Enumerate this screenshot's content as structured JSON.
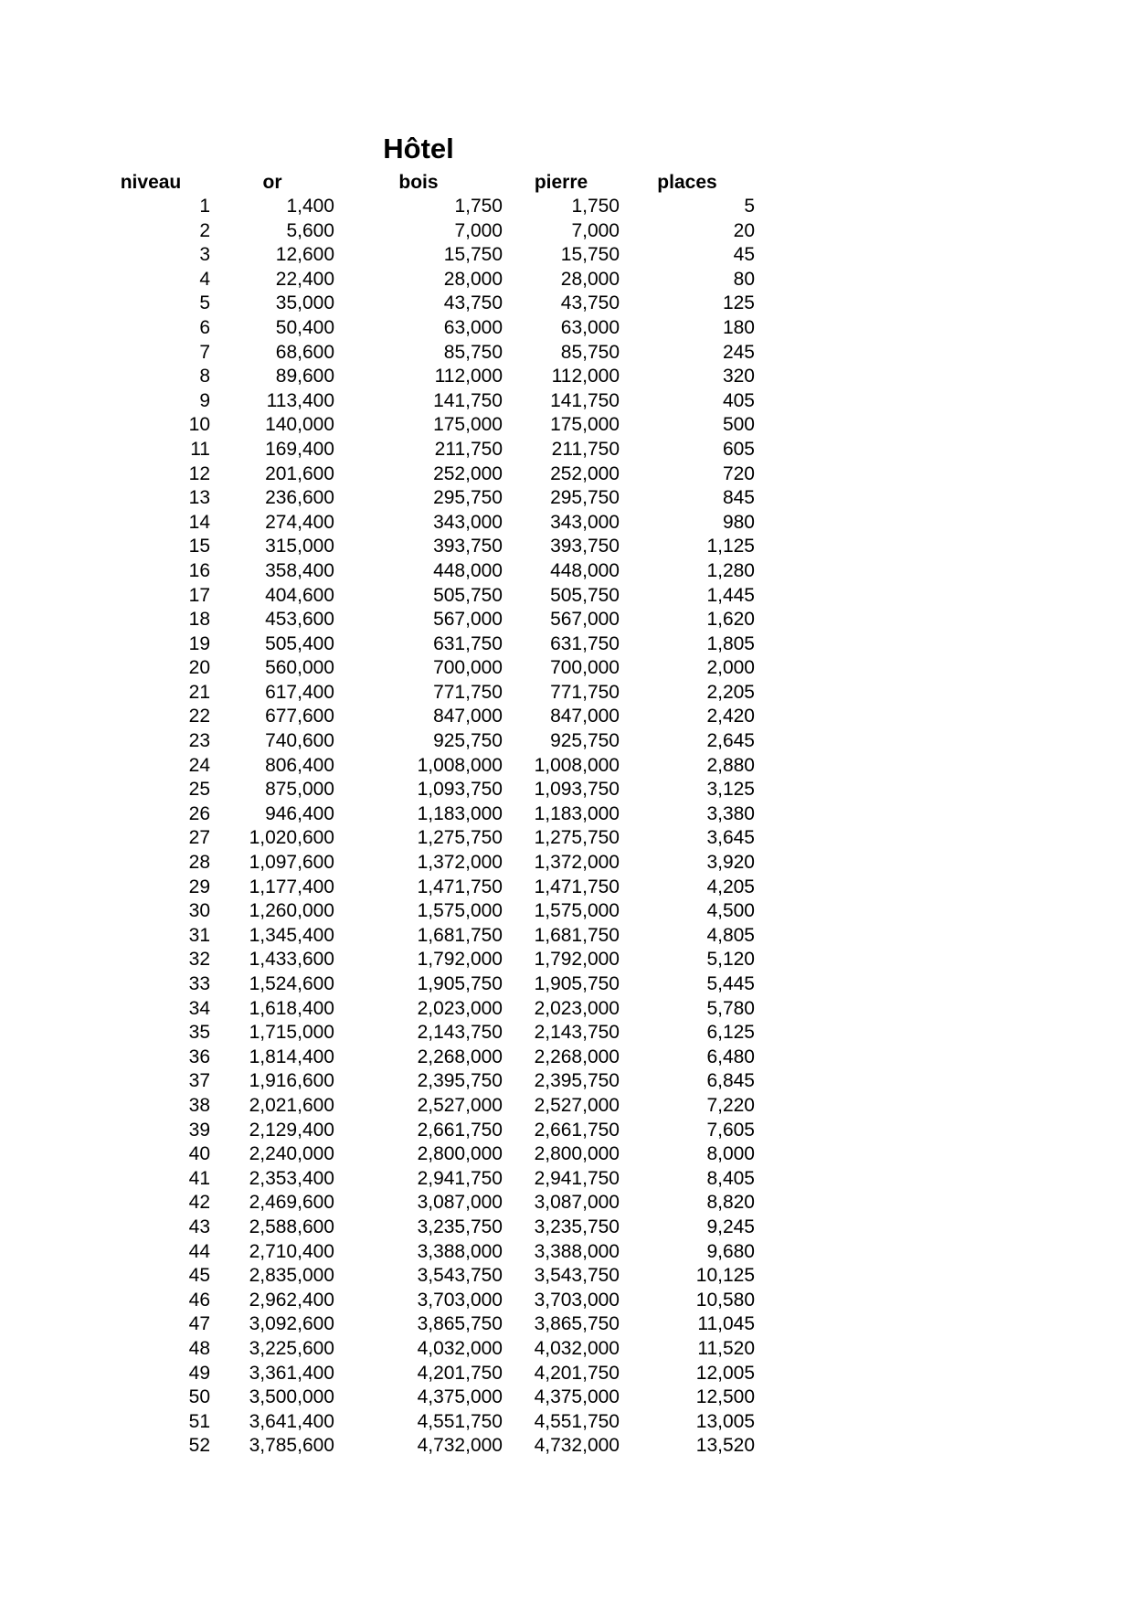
{
  "title": "Hôtel",
  "table": {
    "columns": [
      {
        "key": "niveau",
        "label": "niveau"
      },
      {
        "key": "or",
        "label": "or"
      },
      {
        "key": "bois",
        "label": "bois"
      },
      {
        "key": "pierre",
        "label": "pierre"
      },
      {
        "key": "places",
        "label": "places"
      }
    ],
    "rows": [
      [
        "1",
        "1,400",
        "1,750",
        "1,750",
        "5"
      ],
      [
        "2",
        "5,600",
        "7,000",
        "7,000",
        "20"
      ],
      [
        "3",
        "12,600",
        "15,750",
        "15,750",
        "45"
      ],
      [
        "4",
        "22,400",
        "28,000",
        "28,000",
        "80"
      ],
      [
        "5",
        "35,000",
        "43,750",
        "43,750",
        "125"
      ],
      [
        "6",
        "50,400",
        "63,000",
        "63,000",
        "180"
      ],
      [
        "7",
        "68,600",
        "85,750",
        "85,750",
        "245"
      ],
      [
        "8",
        "89,600",
        "112,000",
        "112,000",
        "320"
      ],
      [
        "9",
        "113,400",
        "141,750",
        "141,750",
        "405"
      ],
      [
        "10",
        "140,000",
        "175,000",
        "175,000",
        "500"
      ],
      [
        "11",
        "169,400",
        "211,750",
        "211,750",
        "605"
      ],
      [
        "12",
        "201,600",
        "252,000",
        "252,000",
        "720"
      ],
      [
        "13",
        "236,600",
        "295,750",
        "295,750",
        "845"
      ],
      [
        "14",
        "274,400",
        "343,000",
        "343,000",
        "980"
      ],
      [
        "15",
        "315,000",
        "393,750",
        "393,750",
        "1,125"
      ],
      [
        "16",
        "358,400",
        "448,000",
        "448,000",
        "1,280"
      ],
      [
        "17",
        "404,600",
        "505,750",
        "505,750",
        "1,445"
      ],
      [
        "18",
        "453,600",
        "567,000",
        "567,000",
        "1,620"
      ],
      [
        "19",
        "505,400",
        "631,750",
        "631,750",
        "1,805"
      ],
      [
        "20",
        "560,000",
        "700,000",
        "700,000",
        "2,000"
      ],
      [
        "21",
        "617,400",
        "771,750",
        "771,750",
        "2,205"
      ],
      [
        "22",
        "677,600",
        "847,000",
        "847,000",
        "2,420"
      ],
      [
        "23",
        "740,600",
        "925,750",
        "925,750",
        "2,645"
      ],
      [
        "24",
        "806,400",
        "1,008,000",
        "1,008,000",
        "2,880"
      ],
      [
        "25",
        "875,000",
        "1,093,750",
        "1,093,750",
        "3,125"
      ],
      [
        "26",
        "946,400",
        "1,183,000",
        "1,183,000",
        "3,380"
      ],
      [
        "27",
        "1,020,600",
        "1,275,750",
        "1,275,750",
        "3,645"
      ],
      [
        "28",
        "1,097,600",
        "1,372,000",
        "1,372,000",
        "3,920"
      ],
      [
        "29",
        "1,177,400",
        "1,471,750",
        "1,471,750",
        "4,205"
      ],
      [
        "30",
        "1,260,000",
        "1,575,000",
        "1,575,000",
        "4,500"
      ],
      [
        "31",
        "1,345,400",
        "1,681,750",
        "1,681,750",
        "4,805"
      ],
      [
        "32",
        "1,433,600",
        "1,792,000",
        "1,792,000",
        "5,120"
      ],
      [
        "33",
        "1,524,600",
        "1,905,750",
        "1,905,750",
        "5,445"
      ],
      [
        "34",
        "1,618,400",
        "2,023,000",
        "2,023,000",
        "5,780"
      ],
      [
        "35",
        "1,715,000",
        "2,143,750",
        "2,143,750",
        "6,125"
      ],
      [
        "36",
        "1,814,400",
        "2,268,000",
        "2,268,000",
        "6,480"
      ],
      [
        "37",
        "1,916,600",
        "2,395,750",
        "2,395,750",
        "6,845"
      ],
      [
        "38",
        "2,021,600",
        "2,527,000",
        "2,527,000",
        "7,220"
      ],
      [
        "39",
        "2,129,400",
        "2,661,750",
        "2,661,750",
        "7,605"
      ],
      [
        "40",
        "2,240,000",
        "2,800,000",
        "2,800,000",
        "8,000"
      ],
      [
        "41",
        "2,353,400",
        "2,941,750",
        "2,941,750",
        "8,405"
      ],
      [
        "42",
        "2,469,600",
        "3,087,000",
        "3,087,000",
        "8,820"
      ],
      [
        "43",
        "2,588,600",
        "3,235,750",
        "3,235,750",
        "9,245"
      ],
      [
        "44",
        "2,710,400",
        "3,388,000",
        "3,388,000",
        "9,680"
      ],
      [
        "45",
        "2,835,000",
        "3,543,750",
        "3,543,750",
        "10,125"
      ],
      [
        "46",
        "2,962,400",
        "3,703,000",
        "3,703,000",
        "10,580"
      ],
      [
        "47",
        "3,092,600",
        "3,865,750",
        "3,865,750",
        "11,045"
      ],
      [
        "48",
        "3,225,600",
        "4,032,000",
        "4,032,000",
        "11,520"
      ],
      [
        "49",
        "3,361,400",
        "4,201,750",
        "4,201,750",
        "12,005"
      ],
      [
        "50",
        "3,500,000",
        "4,375,000",
        "4,375,000",
        "12,500"
      ],
      [
        "51",
        "3,641,400",
        "4,551,750",
        "4,551,750",
        "13,005"
      ],
      [
        "52",
        "3,785,600",
        "4,732,000",
        "4,732,000",
        "13,520"
      ]
    ]
  }
}
